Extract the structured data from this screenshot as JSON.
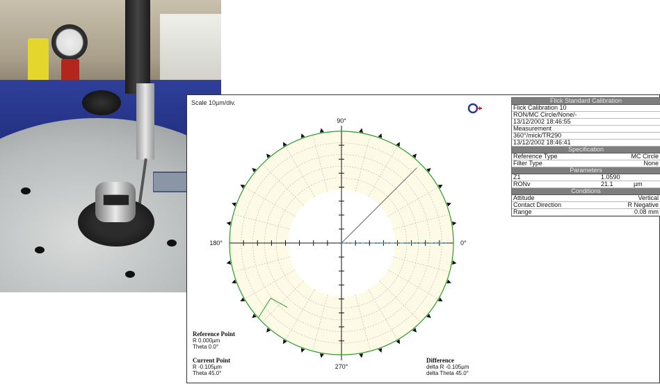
{
  "scale_label": "Scale 10µm/div.",
  "axis_labels": {
    "top": "90°",
    "left": "180°",
    "right": "0°",
    "bottom": "270°"
  },
  "panel": {
    "title": "Flick Standard Calibration",
    "rows": [
      "Flick Calibration  10",
      "RON/MC Circle/None/-",
      "13/12/2002 18:46:55",
      "Measurement",
      "360°/mick/TR290",
      "13/12/2002 18:46:41"
    ],
    "spec_header": "Specification",
    "spec": [
      {
        "label": "Reference Type",
        "value": "MC Circle"
      },
      {
        "label": "Filter Type",
        "value": "None"
      }
    ],
    "params_header": "Parameters",
    "params": [
      {
        "label": "Z1",
        "value": "1.0590",
        "unit": ""
      },
      {
        "label": "RONv",
        "value": "21.1",
        "unit": "µm"
      }
    ],
    "cond_header": "Conditions",
    "conditions": [
      {
        "label": "Attitude",
        "value": "Vertical"
      },
      {
        "label": "Contact Direction",
        "value": "R Negative"
      },
      {
        "label": "Range",
        "value": "0.08    mm"
      }
    ]
  },
  "reference_point": {
    "title": "Reference Point",
    "r": "R 0.000µm",
    "theta": "Theta 0.0°"
  },
  "current_point": {
    "title": "Current Point",
    "r": "R -0.105µm",
    "theta": "Theta 45.0°"
  },
  "difference": {
    "title": "Difference",
    "r": "delta R -0.105µm",
    "theta": "delta Theta 45.0°"
  },
  "colors": {
    "band_fill": "#fdfbe6",
    "trace": "#2b9a2b",
    "arrow": "#8a96a6"
  }
}
